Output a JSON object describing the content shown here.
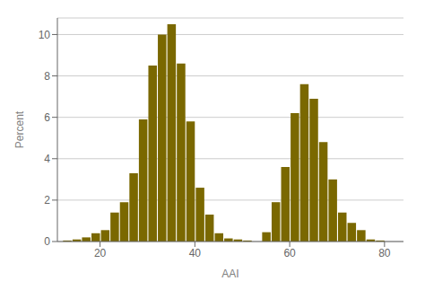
{
  "chart_data": {
    "type": "bar",
    "xlabel": "AAI",
    "ylabel": "Percent",
    "x": [
      13,
      15,
      17,
      19,
      21,
      23,
      25,
      27,
      29,
      31,
      33,
      35,
      37,
      39,
      41,
      43,
      45,
      47,
      49,
      51,
      55,
      57,
      59,
      61,
      63,
      65,
      67,
      69,
      71,
      73,
      75,
      77,
      79
    ],
    "values": [
      0.05,
      0.1,
      0.2,
      0.4,
      0.55,
      1.4,
      1.9,
      3.3,
      5.9,
      8.5,
      10.0,
      10.5,
      8.6,
      5.8,
      2.6,
      1.3,
      0.4,
      0.15,
      0.1,
      0.05,
      0.45,
      1.9,
      3.6,
      6.2,
      7.6,
      6.9,
      4.8,
      3.0,
      1.4,
      0.9,
      0.55,
      0.1,
      0.05
    ],
    "color": "#7a6800",
    "xlim": [
      11,
      84
    ],
    "ylim": [
      0,
      10.8
    ],
    "xticks": [
      20,
      40,
      60,
      80
    ],
    "yticks": [
      0,
      2,
      4,
      6,
      8,
      10
    ],
    "grid": true
  }
}
